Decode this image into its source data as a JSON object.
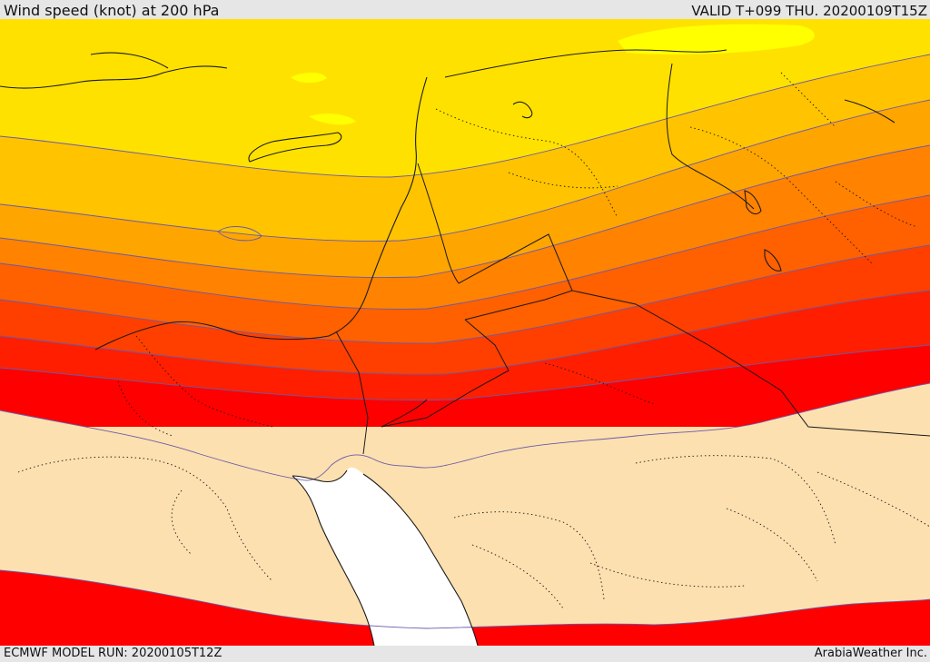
{
  "header": {
    "title": "Wind speed (knot) at 200 hPa",
    "valid_time": "VALID T+099 THU. 20200109T15Z"
  },
  "footer": {
    "model_run": "ECMWF MODEL RUN: 20200105T12Z",
    "credit": "ArabiaWeather Inc."
  },
  "map": {
    "variable": "wind speed",
    "level": "200 hPa",
    "units": "knot",
    "shading_colors": [
      "#ffff00",
      "#ffe100",
      "#ffc300",
      "#ffa500",
      "#ff8200",
      "#ff6000",
      "#ff3f00",
      "#ff1e00",
      "#ff0000",
      "#fde0b0",
      "#ffffff"
    ],
    "contour_color": "#6b5aa8",
    "border_color": "#1a1a1a"
  }
}
